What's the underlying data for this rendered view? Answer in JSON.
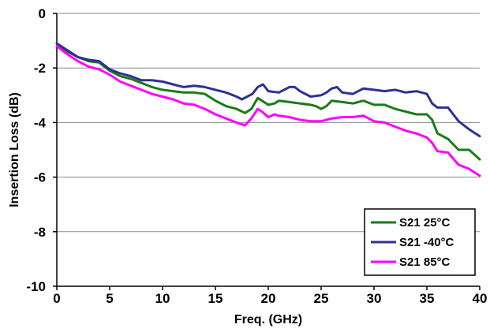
{
  "chart_data": {
    "type": "line",
    "title": "",
    "xlabel": "Freq. (GHz)",
    "ylabel": "Insertion Loss (dB)",
    "xlim": [
      0,
      40
    ],
    "ylim": [
      -10,
      0
    ],
    "xticks": [
      0,
      5,
      10,
      15,
      20,
      25,
      30,
      35,
      40
    ],
    "yticks": [
      0,
      -2,
      -4,
      -6,
      -8,
      -10
    ],
    "grid": "horizontal",
    "legend_position": "bottom-right",
    "series": [
      {
        "name": "S21 25°C",
        "color": "#1a7a1a",
        "x": [
          0,
          1,
          2,
          3,
          4,
          5,
          6,
          7,
          8,
          9,
          10,
          11,
          12,
          13,
          14,
          15,
          16,
          17,
          17.8,
          18.4,
          19,
          19.4,
          20,
          20.6,
          21,
          22,
          23,
          24,
          24.5,
          25,
          25.5,
          26,
          27,
          28,
          29,
          30,
          31,
          32,
          33,
          34,
          35,
          35.5,
          36,
          37,
          38,
          39,
          40
        ],
        "y": [
          -1.1,
          -1.4,
          -1.6,
          -1.75,
          -1.8,
          -2.1,
          -2.3,
          -2.4,
          -2.55,
          -2.7,
          -2.8,
          -2.85,
          -2.9,
          -2.9,
          -2.95,
          -3.2,
          -3.4,
          -3.5,
          -3.65,
          -3.5,
          -3.1,
          -3.2,
          -3.35,
          -3.3,
          -3.2,
          -3.25,
          -3.3,
          -3.35,
          -3.4,
          -3.5,
          -3.4,
          -3.2,
          -3.25,
          -3.3,
          -3.2,
          -3.35,
          -3.35,
          -3.5,
          -3.6,
          -3.7,
          -3.7,
          -3.9,
          -4.4,
          -4.6,
          -5.0,
          -5.0,
          -5.35
        ]
      },
      {
        "name": "S21 -40°C",
        "color": "#2e3192",
        "x": [
          0,
          1,
          2,
          3,
          4,
          5,
          6,
          7,
          8,
          9,
          10,
          11,
          12,
          13,
          14,
          15,
          16,
          17,
          17.5,
          18.5,
          19,
          19.5,
          20,
          21,
          22,
          22.5,
          23,
          24,
          25,
          25.5,
          26,
          26.5,
          27,
          28,
          29,
          30,
          31,
          32,
          33,
          34,
          35,
          35.5,
          36,
          37,
          38,
          39,
          40
        ],
        "y": [
          -1.1,
          -1.35,
          -1.6,
          -1.7,
          -1.75,
          -2.05,
          -2.2,
          -2.3,
          -2.45,
          -2.45,
          -2.5,
          -2.6,
          -2.7,
          -2.65,
          -2.7,
          -2.8,
          -2.9,
          -3.05,
          -3.15,
          -2.95,
          -2.7,
          -2.6,
          -2.85,
          -2.9,
          -2.7,
          -2.7,
          -2.85,
          -3.05,
          -3.0,
          -2.9,
          -2.75,
          -2.7,
          -2.9,
          -2.95,
          -2.75,
          -2.8,
          -2.85,
          -2.8,
          -2.9,
          -2.85,
          -2.95,
          -3.3,
          -3.45,
          -3.45,
          -3.95,
          -4.25,
          -4.5
        ]
      },
      {
        "name": "S21 85°C",
        "color": "#ff00ff",
        "x": [
          0,
          1,
          2,
          3,
          4,
          5,
          6,
          7,
          8,
          9,
          10,
          11,
          12,
          13,
          14,
          15,
          16,
          17,
          17.8,
          18.4,
          19,
          19.4,
          20,
          20.6,
          21,
          22,
          23,
          24,
          25,
          25.5,
          26,
          27,
          28,
          29,
          30,
          31,
          32,
          33,
          34,
          35,
          35.5,
          36,
          37,
          38,
          39,
          40
        ],
        "y": [
          -1.2,
          -1.5,
          -1.75,
          -1.95,
          -2.05,
          -2.25,
          -2.5,
          -2.65,
          -2.8,
          -2.95,
          -3.05,
          -3.15,
          -3.3,
          -3.35,
          -3.5,
          -3.7,
          -3.85,
          -4.0,
          -4.1,
          -3.85,
          -3.5,
          -3.6,
          -3.8,
          -3.7,
          -3.75,
          -3.8,
          -3.9,
          -3.95,
          -3.95,
          -3.9,
          -3.85,
          -3.8,
          -3.8,
          -3.75,
          -3.95,
          -4.0,
          -4.15,
          -4.3,
          -4.4,
          -4.55,
          -4.75,
          -5.05,
          -5.1,
          -5.55,
          -5.7,
          -5.95
        ]
      }
    ]
  }
}
